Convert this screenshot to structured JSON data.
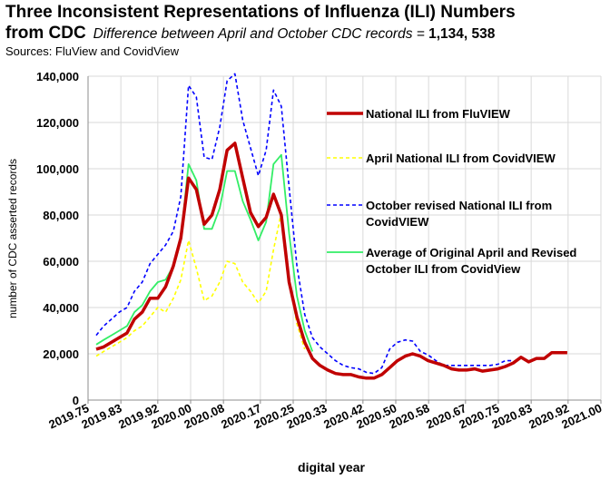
{
  "header": {
    "title_line1": "Three Inconsistent Representations of Influenza (ILI) Numbers",
    "title_line2": "from CDC",
    "subtitle_prefix": "Difference between April and October CDC records = ",
    "subtitle_value": "1,134, 538",
    "sources": "Sources: FluView and CovidView"
  },
  "chart_data": {
    "type": "line",
    "xlabel": "digital year",
    "ylabel": "number of CDC asserted records",
    "xlim": [
      2019.75,
      2021.0
    ],
    "ylim": [
      0,
      140000
    ],
    "x_ticks": [
      2019.75,
      2019.83,
      2019.92,
      2020.0,
      2020.08,
      2020.17,
      2020.25,
      2020.33,
      2020.42,
      2020.5,
      2020.58,
      2020.67,
      2020.75,
      2020.83,
      2020.92,
      2021.0
    ],
    "x_tick_labels": [
      "2019.75",
      "2019.83",
      "2019.92",
      "2020.00",
      "2020.08",
      "2020.17",
      "2020.25",
      "2020.33",
      "2020.42",
      "2020.50",
      "2020.58",
      "2020.67",
      "2020.75",
      "2020.83",
      "2020.92",
      "2021.00"
    ],
    "y_ticks": [
      0,
      20000,
      40000,
      60000,
      80000,
      100000,
      120000,
      140000
    ],
    "y_tick_labels": [
      "0",
      "20,000",
      "40,000",
      "60,000",
      "80,000",
      "100,000",
      "120,000",
      "140,000"
    ],
    "grid": true,
    "legend_position": "right",
    "series": [
      {
        "name": "National ILI from FluVIEW",
        "color": "#c00000",
        "style": "solid-thick",
        "x": [
          2019.77,
          2019.788,
          2019.807,
          2019.826,
          2019.845,
          2019.863,
          2019.882,
          2019.901,
          2019.92,
          2019.939,
          2019.958,
          2019.976,
          2019.995,
          2020.014,
          2020.033,
          2020.052,
          2020.071,
          2020.089,
          2020.108,
          2020.127,
          2020.146,
          2020.165,
          2020.184,
          2020.202,
          2020.221,
          2020.24,
          2020.259,
          2020.278,
          2020.297,
          2020.315,
          2020.334,
          2020.353,
          2020.372,
          2020.391,
          2020.41,
          2020.428,
          2020.447,
          2020.466,
          2020.485,
          2020.504,
          2020.523,
          2020.541,
          2020.56,
          2020.579,
          2020.598,
          2020.617,
          2020.636,
          2020.654,
          2020.673,
          2020.692,
          2020.711,
          2020.73,
          2020.749,
          2020.767,
          2020.786,
          2020.805,
          2020.824,
          2020.843,
          2020.862,
          2020.88,
          2020.899,
          2020.918
        ],
        "y": [
          22000,
          23000,
          25000,
          27000,
          29000,
          35000,
          38000,
          44000,
          44000,
          49000,
          58000,
          70000,
          96000,
          91000,
          76000,
          80000,
          91000,
          108000,
          111000,
          96000,
          81000,
          75000,
          79000,
          89000,
          80000,
          51000,
          36000,
          25000,
          18000,
          15000,
          13000,
          11500,
          11000,
          11000,
          10000,
          9500,
          9500,
          11000,
          14000,
          17000,
          19000,
          20000,
          19000,
          17000,
          16000,
          15000,
          13500,
          13000,
          13000,
          13500,
          12500,
          13000,
          13500,
          14500,
          16000,
          18500,
          16500,
          18000,
          18000,
          20500,
          20500,
          20500
        ]
      },
      {
        "name": "April National ILI from CovidVIEW",
        "color": "#ffff00",
        "style": "dashed",
        "x": [
          2019.77,
          2019.788,
          2019.807,
          2019.826,
          2019.845,
          2019.863,
          2019.882,
          2019.901,
          2019.92,
          2019.939,
          2019.958,
          2019.976,
          2019.995,
          2020.014,
          2020.033,
          2020.052,
          2020.071,
          2020.089,
          2020.108,
          2020.127,
          2020.146,
          2020.165,
          2020.184,
          2020.202,
          2020.221,
          2020.24,
          2020.259,
          2020.278
        ],
        "y": [
          19000,
          21000,
          23000,
          25000,
          27000,
          30000,
          32000,
          36000,
          40000,
          38000,
          44000,
          52000,
          69000,
          57000,
          43000,
          45000,
          51000,
          60000,
          59000,
          51000,
          47000,
          42000,
          47000,
          65000,
          81000,
          52000,
          33000,
          22000
        ]
      },
      {
        "name": "October revised National ILI from CovidVIEW",
        "color": "#0000ff",
        "style": "dashed",
        "x": [
          2019.77,
          2019.788,
          2019.807,
          2019.826,
          2019.845,
          2019.863,
          2019.882,
          2019.901,
          2019.92,
          2019.939,
          2019.958,
          2019.976,
          2019.995,
          2020.014,
          2020.033,
          2020.052,
          2020.071,
          2020.089,
          2020.108,
          2020.127,
          2020.146,
          2020.165,
          2020.184,
          2020.202,
          2020.221,
          2020.24,
          2020.259,
          2020.278,
          2020.297,
          2020.315,
          2020.334,
          2020.353,
          2020.372,
          2020.391,
          2020.41,
          2020.428,
          2020.447,
          2020.466,
          2020.485,
          2020.504,
          2020.523,
          2020.541,
          2020.56,
          2020.579,
          2020.598,
          2020.617,
          2020.636,
          2020.654,
          2020.673,
          2020.692,
          2020.711,
          2020.73,
          2020.749,
          2020.767,
          2020.786
        ],
        "y": [
          28000,
          32000,
          35000,
          38000,
          40000,
          47000,
          51000,
          59000,
          63000,
          67000,
          73000,
          88000,
          136000,
          131000,
          105000,
          104000,
          118000,
          138000,
          141000,
          121000,
          109000,
          97000,
          108000,
          134000,
          127000,
          92000,
          58000,
          37000,
          27000,
          23000,
          20000,
          17000,
          15000,
          14000,
          13500,
          12000,
          11500,
          14000,
          22000,
          25000,
          26000,
          25500,
          21000,
          19500,
          17000,
          15000,
          15000,
          15000,
          15000,
          15000,
          15000,
          15000,
          15500,
          17000,
          17000
        ]
      },
      {
        "name": "Average of Original April and Revised October ILI from CovidView",
        "color": "#33ee66",
        "style": "solid",
        "x": [
          2019.77,
          2019.788,
          2019.807,
          2019.826,
          2019.845,
          2019.863,
          2019.882,
          2019.901,
          2019.92,
          2019.939,
          2019.958,
          2019.976,
          2019.995,
          2020.014,
          2020.033,
          2020.052,
          2020.071,
          2020.089,
          2020.108,
          2020.127,
          2020.146,
          2020.165,
          2020.184,
          2020.202,
          2020.221,
          2020.24,
          2020.259,
          2020.278,
          2020.297
        ],
        "y": [
          24000,
          26000,
          28000,
          30000,
          32000,
          38000,
          41000,
          47000,
          51000,
          52000,
          58000,
          70000,
          102000,
          95000,
          74000,
          74000,
          83000,
          99000,
          99000,
          86000,
          78000,
          69000,
          77000,
          102000,
          106000,
          72000,
          45000,
          30000,
          21000
        ]
      }
    ]
  }
}
